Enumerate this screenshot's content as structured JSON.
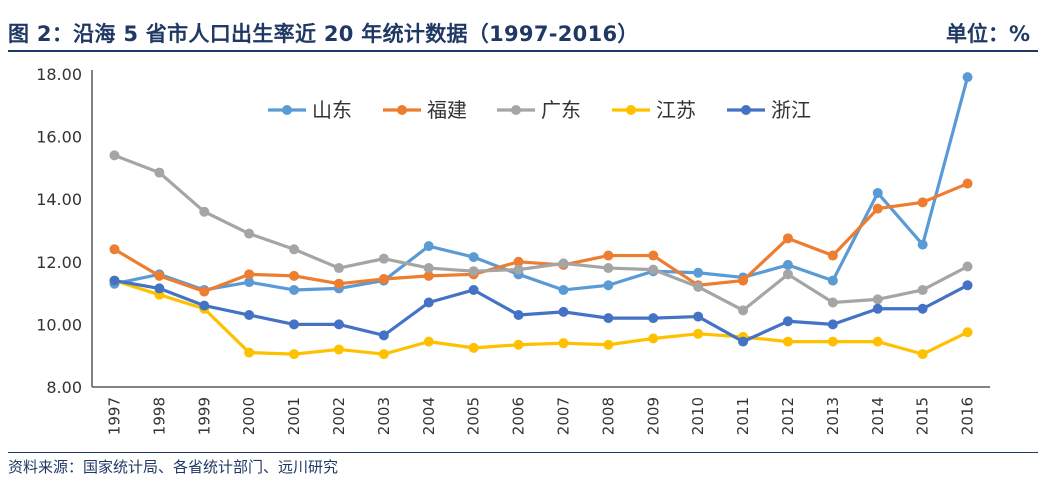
{
  "header": {
    "title": "图 2：沿海 5 省市人口出生率近 20 年统计数据（1997-2016）",
    "unit": "单位：%"
  },
  "footer": {
    "source": "资料来源：国家统计局、各省统计部门、远川研究"
  },
  "chart_data": {
    "type": "line",
    "title": "",
    "xlabel": "",
    "ylabel": "",
    "ylim": [
      8,
      18
    ],
    "yticks": [
      "8.00",
      "10.00",
      "12.00",
      "14.00",
      "16.00",
      "18.00"
    ],
    "grid": false,
    "legend_position": "top",
    "x": [
      "1997",
      "1998",
      "1999",
      "2000",
      "2001",
      "2002",
      "2003",
      "2004",
      "2005",
      "2006",
      "2007",
      "2008",
      "2009",
      "2010",
      "2011",
      "2012",
      "2013",
      "2014",
      "2015",
      "2016"
    ],
    "series": [
      {
        "name": "山东",
        "color": "#5b9bd5",
        "values": [
          11.3,
          11.6,
          11.1,
          11.35,
          11.1,
          11.15,
          11.4,
          12.5,
          12.15,
          11.6,
          11.1,
          11.25,
          11.7,
          11.65,
          11.5,
          11.9,
          11.4,
          14.2,
          12.55,
          17.9
        ]
      },
      {
        "name": "福建",
        "color": "#ed7d31",
        "values": [
          12.4,
          11.55,
          11.05,
          11.6,
          11.55,
          11.3,
          11.45,
          11.55,
          11.6,
          12.0,
          11.9,
          12.2,
          12.2,
          11.25,
          11.4,
          12.75,
          12.2,
          13.7,
          13.9,
          14.5
        ]
      },
      {
        "name": "广东",
        "color": "#a5a5a5",
        "values": [
          15.4,
          14.85,
          13.6,
          12.9,
          12.4,
          11.8,
          12.1,
          11.8,
          11.7,
          11.75,
          11.95,
          11.8,
          11.75,
          11.2,
          10.45,
          11.6,
          10.7,
          10.8,
          11.1,
          11.85
        ]
      },
      {
        "name": "江苏",
        "color": "#ffc000",
        "values": [
          11.4,
          10.95,
          10.5,
          9.1,
          9.05,
          9.2,
          9.05,
          9.45,
          9.25,
          9.35,
          9.4,
          9.35,
          9.55,
          9.7,
          9.6,
          9.45,
          9.45,
          9.45,
          9.05,
          9.75
        ]
      },
      {
        "name": "浙江",
        "color": "#4472c4",
        "values": [
          11.4,
          11.15,
          10.6,
          10.3,
          10.0,
          10.0,
          9.65,
          10.7,
          11.1,
          10.3,
          10.4,
          10.2,
          10.2,
          10.25,
          9.45,
          10.1,
          10.0,
          10.5,
          10.5,
          11.25
        ]
      }
    ]
  }
}
